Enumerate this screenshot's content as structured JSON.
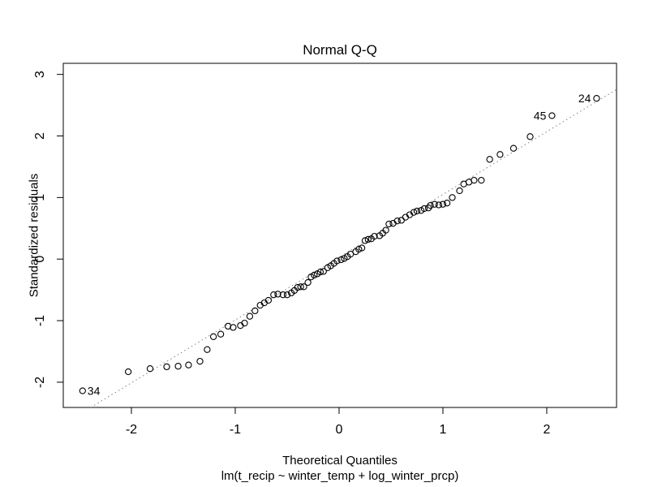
{
  "figure": {
    "title": "Normal Q-Q",
    "x_axis_label": "Theoretical Quantiles",
    "y_axis_label": "Standardized residuals",
    "model_formula": "lm(t_recip ~ winter_temp + log_winter_prcp)"
  },
  "colors": {
    "background": "#ffffff",
    "point_stroke": "#000000",
    "reference_line": "#808080",
    "axis": "#000000",
    "text": "#000000"
  },
  "chart_data": {
    "type": "scatter",
    "title": "Normal Q-Q",
    "xlabel": "Theoretical Quantiles",
    "ylabel": "Standardized residuals",
    "subtitle": "lm(t_recip ~ winter_temp + log_winter_prcp)",
    "xlim": [
      -2.656,
      2.672
    ],
    "ylim": [
      -2.41,
      3.18
    ],
    "xticks": [
      -2,
      -1,
      0,
      1,
      2
    ],
    "yticks": [
      -2,
      -1,
      0,
      1,
      2,
      3
    ],
    "grid": false,
    "legend": null,
    "marker": "open-circle",
    "reference_line": {
      "style": "dotted",
      "slope": 1.02,
      "intercept": 0.03
    },
    "points": [
      [
        -2.47,
        -2.14
      ],
      [
        -2.03,
        -1.83
      ],
      [
        -1.82,
        -1.78
      ],
      [
        -1.66,
        -1.75
      ],
      [
        -1.55,
        -1.74
      ],
      [
        -1.45,
        -1.72
      ],
      [
        -1.34,
        -1.66
      ],
      [
        -1.27,
        -1.47
      ],
      [
        -1.21,
        -1.26
      ],
      [
        -1.14,
        -1.22
      ],
      [
        -1.07,
        -1.09
      ],
      [
        -1.02,
        -1.11
      ],
      [
        -0.95,
        -1.08
      ],
      [
        -0.91,
        -1.04
      ],
      [
        -0.86,
        -0.93
      ],
      [
        -0.81,
        -0.84
      ],
      [
        -0.76,
        -0.75
      ],
      [
        -0.72,
        -0.71
      ],
      [
        -0.68,
        -0.67
      ],
      [
        -0.63,
        -0.58
      ],
      [
        -0.59,
        -0.57
      ],
      [
        -0.54,
        -0.58
      ],
      [
        -0.5,
        -0.58
      ],
      [
        -0.46,
        -0.55
      ],
      [
        -0.43,
        -0.51
      ],
      [
        -0.4,
        -0.46
      ],
      [
        -0.37,
        -0.45
      ],
      [
        -0.34,
        -0.45
      ],
      [
        -0.3,
        -0.38
      ],
      [
        -0.27,
        -0.29
      ],
      [
        -0.24,
        -0.26
      ],
      [
        -0.21,
        -0.24
      ],
      [
        -0.18,
        -0.21
      ],
      [
        -0.15,
        -0.2
      ],
      [
        -0.11,
        -0.14
      ],
      [
        -0.08,
        -0.11
      ],
      [
        -0.05,
        -0.07
      ],
      [
        -0.02,
        -0.03
      ],
      [
        0.02,
        -0.01
      ],
      [
        0.05,
        0.01
      ],
      [
        0.08,
        0.04
      ],
      [
        0.11,
        0.08
      ],
      [
        0.16,
        0.12
      ],
      [
        0.19,
        0.16
      ],
      [
        0.22,
        0.18
      ],
      [
        0.25,
        0.3
      ],
      [
        0.28,
        0.32
      ],
      [
        0.31,
        0.33
      ],
      [
        0.34,
        0.37
      ],
      [
        0.39,
        0.38
      ],
      [
        0.42,
        0.42
      ],
      [
        0.45,
        0.47
      ],
      [
        0.48,
        0.57
      ],
      [
        0.52,
        0.58
      ],
      [
        0.56,
        0.62
      ],
      [
        0.6,
        0.63
      ],
      [
        0.64,
        0.68
      ],
      [
        0.68,
        0.72
      ],
      [
        0.72,
        0.76
      ],
      [
        0.75,
        0.78
      ],
      [
        0.79,
        0.79
      ],
      [
        0.82,
        0.82
      ],
      [
        0.86,
        0.83
      ],
      [
        0.88,
        0.87
      ],
      [
        0.92,
        0.89
      ],
      [
        0.96,
        0.88
      ],
      [
        1.0,
        0.89
      ],
      [
        1.04,
        0.91
      ],
      [
        1.09,
        1.0
      ],
      [
        1.16,
        1.11
      ],
      [
        1.2,
        1.22
      ],
      [
        1.25,
        1.25
      ],
      [
        1.3,
        1.28
      ],
      [
        1.37,
        1.28
      ],
      [
        1.45,
        1.62
      ],
      [
        1.55,
        1.7
      ],
      [
        1.68,
        1.8
      ],
      [
        1.84,
        1.99
      ],
      [
        2.05,
        2.33
      ],
      [
        2.48,
        2.61
      ]
    ],
    "labeled_points": [
      {
        "label": "34",
        "x": -2.47,
        "y": -2.14,
        "side": "right"
      },
      {
        "label": "45",
        "x": 2.05,
        "y": 2.33,
        "side": "left"
      },
      {
        "label": "24",
        "x": 2.48,
        "y": 2.61,
        "side": "left"
      }
    ]
  }
}
